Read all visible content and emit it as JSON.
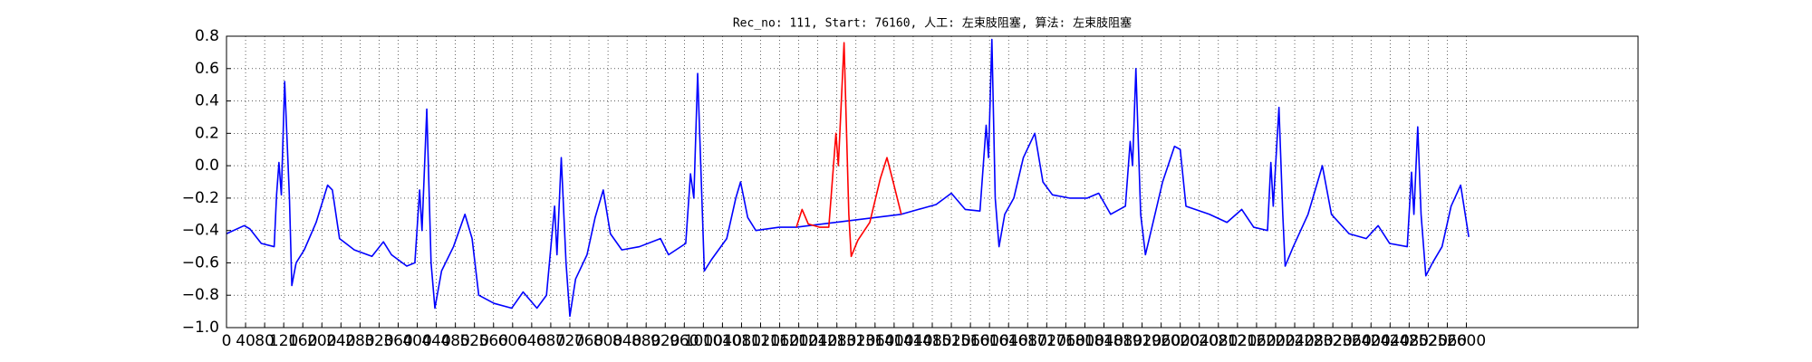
{
  "chart_data": {
    "type": "line",
    "title": "Rec_no: 111, Start: 76160, 人工: 左束肢阻塞, 算法: 左束肢阻塞",
    "xlim": [
      0,
      2960
    ],
    "ylim": [
      -1.0,
      0.8
    ],
    "xticks": [
      0,
      40,
      80,
      120,
      160,
      200,
      240,
      280,
      320,
      360,
      400,
      440,
      480,
      520,
      560,
      600,
      640,
      680,
      720,
      760,
      800,
      840,
      880,
      920,
      960,
      1000,
      1040,
      1080,
      1120,
      1160,
      1200,
      1240,
      1280,
      1320,
      1360,
      1400,
      1440,
      1480,
      1520,
      1560,
      1600,
      1640,
      1680,
      1720,
      1760,
      1800,
      1840,
      1880,
      1920,
      1960,
      2000,
      2040,
      2080,
      2120,
      2160,
      2200,
      2240,
      2280,
      2320,
      2360,
      2400,
      2440,
      2480,
      2520,
      2560,
      2600
    ],
    "yticks": [
      {
        "value": -1.0,
        "label": "−1.0"
      },
      {
        "value": -0.8,
        "label": "−0.8"
      },
      {
        "value": -0.6,
        "label": "−0.6"
      },
      {
        "value": -0.4,
        "label": "−0.4"
      },
      {
        "value": -0.2,
        "label": "−0.2"
      },
      {
        "value": 0.0,
        "label": "0.0"
      },
      {
        "value": 0.2,
        "label": "0.2"
      },
      {
        "value": 0.4,
        "label": "0.4"
      },
      {
        "value": 0.6,
        "label": "0.6"
      },
      {
        "value": 0.8,
        "label": "0.8"
      }
    ],
    "grid": true,
    "series": [
      {
        "color": "#0000ff",
        "x": [
          0,
          37,
          49,
          73,
          100,
          105,
          110,
          115,
          122,
          132,
          137,
          146,
          163,
          188,
          212,
          222,
          237,
          268,
          305,
          329,
          346,
          378,
          395,
          405,
          410,
          420,
          429,
          437,
          451,
          476,
          500,
          515,
          529,
          561,
          598,
          622,
          651,
          671,
          688,
          693,
          702,
          712,
          720,
          732,
          756,
          773,
          790,
          805,
          829,
          866,
          910,
          927,
          963,
          973,
          980,
          988,
          998,
          1002,
          1017,
          1049,
          1068,
          1078,
          1093,
          1110,
          1159,
          1195,
          1415,
          1451,
          1488,
          1520,
          1549,
          1580,
          1593,
          1598,
          1605,
          1612,
          1620,
          1632,
          1651,
          1671,
          1695,
          1712,
          1732,
          1768,
          1805,
          1829,
          1854,
          1885,
          1895,
          1900,
          1907,
          1917,
          1927,
          1939,
          1963,
          1988,
          2000,
          2012,
          2061,
          2098,
          2129,
          2154,
          2183,
          2190,
          2195,
          2207,
          2215,
          2220,
          2237,
          2268,
          2298,
          2317,
          2354,
          2390,
          2415,
          2439,
          2476,
          2485,
          2490,
          2498,
          2505,
          2515,
          2529,
          2549,
          2568,
          2588,
          2605
        ],
        "values": [
          -0.42,
          -0.37,
          -0.39,
          -0.48,
          -0.5,
          -0.18,
          0.02,
          -0.18,
          0.52,
          -0.2,
          -0.74,
          -0.6,
          -0.52,
          -0.35,
          -0.12,
          -0.15,
          -0.45,
          -0.52,
          -0.56,
          -0.47,
          -0.55,
          -0.62,
          -0.6,
          -0.15,
          -0.4,
          0.35,
          -0.6,
          -0.88,
          -0.65,
          -0.5,
          -0.3,
          -0.45,
          -0.8,
          -0.85,
          -0.88,
          -0.78,
          -0.88,
          -0.8,
          -0.25,
          -0.55,
          0.05,
          -0.6,
          -0.93,
          -0.7,
          -0.55,
          -0.32,
          -0.15,
          -0.42,
          -0.52,
          -0.5,
          -0.45,
          -0.55,
          -0.48,
          -0.05,
          -0.2,
          0.57,
          -0.3,
          -0.65,
          -0.58,
          -0.45,
          -0.2,
          -0.1,
          -0.32,
          -0.4,
          -0.38,
          -0.38,
          -0.3,
          -0.27,
          -0.24,
          -0.17,
          -0.27,
          -0.28,
          0.25,
          0.05,
          0.78,
          -0.2,
          -0.5,
          -0.3,
          -0.2,
          0.05,
          0.2,
          -0.1,
          -0.18,
          -0.2,
          -0.2,
          -0.17,
          -0.3,
          -0.25,
          0.15,
          0.0,
          0.6,
          -0.3,
          -0.55,
          -0.4,
          -0.1,
          0.12,
          0.1,
          -0.25,
          -0.3,
          -0.35,
          -0.27,
          -0.38,
          -0.4,
          0.02,
          -0.25,
          0.36,
          -0.3,
          -0.62,
          -0.5,
          -0.3,
          0.0,
          -0.3,
          -0.42,
          -0.45,
          -0.37,
          -0.48,
          -0.5,
          -0.04,
          -0.3,
          0.24,
          -0.3,
          -0.68,
          -0.6,
          -0.5,
          -0.25,
          -0.12,
          -0.44
        ]
      },
      {
        "color": "#ff0000",
        "x": [
          1195,
          1207,
          1220,
          1244,
          1263,
          1278,
          1283,
          1295,
          1305,
          1310,
          1324,
          1349,
          1371,
          1385,
          1398,
          1415
        ],
        "values": [
          -0.38,
          -0.27,
          -0.36,
          -0.38,
          -0.38,
          0.2,
          0.0,
          0.76,
          -0.3,
          -0.56,
          -0.46,
          -0.35,
          -0.08,
          0.05,
          -0.1,
          -0.3
        ]
      }
    ]
  }
}
